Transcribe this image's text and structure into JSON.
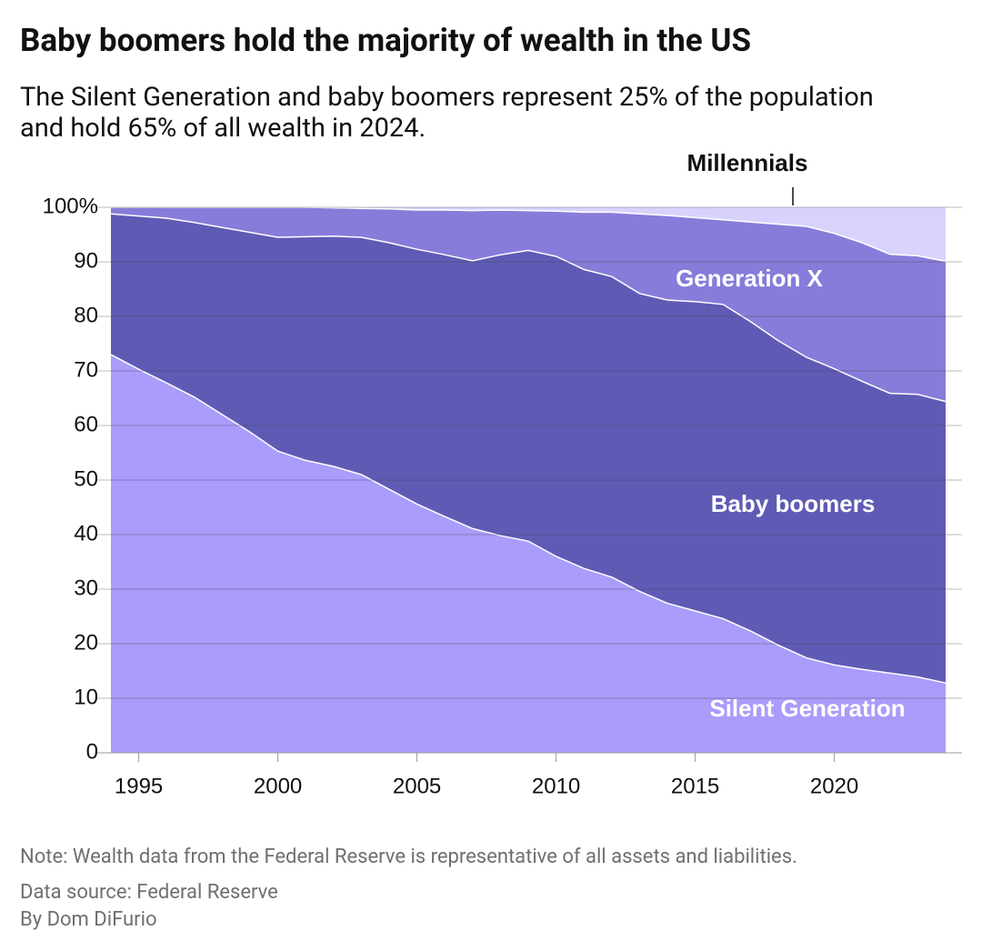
{
  "chart_data": {
    "type": "stacked-area",
    "title": "Baby boomers hold the majority of wealth in the US",
    "subtitle": "The Silent Generation and baby boomers represent 25% of the population and hold 65% of all wealth in 2024.",
    "note": "Note: Wealth data from the Federal Reserve is representative of all assets and liabilities.",
    "source": "Data source: Federal Reserve",
    "byline": "By Dom DiFurio",
    "x": [
      1994,
      1995,
      1996,
      1997,
      1998,
      1999,
      2000,
      2001,
      2002,
      2003,
      2004,
      2005,
      2006,
      2007,
      2008,
      2009,
      2010,
      2011,
      2012,
      2013,
      2014,
      2015,
      2016,
      2017,
      2018,
      2019,
      2020,
      2021,
      2022,
      2023,
      2024
    ],
    "xlim": [
      1994,
      2024
    ],
    "xticks": [
      1995,
      2000,
      2005,
      2010,
      2015,
      2020
    ],
    "ylim": [
      0,
      100
    ],
    "yticks": [
      0,
      10,
      20,
      30,
      40,
      50,
      60,
      70,
      80,
      90,
      {
        "value": 100,
        "label": "100%"
      }
    ],
    "grid": true,
    "series": [
      {
        "name": "Silent Generation",
        "color": "#a99cfb",
        "values": [
          73,
          70.3,
          67.8,
          65.2,
          62,
          58.8,
          55.3,
          53.6,
          52.5,
          51,
          48.3,
          45.6,
          43.3,
          41.1,
          39.8,
          38.8,
          36,
          33.8,
          32.2,
          29.6,
          27.4,
          26,
          24.6,
          22.3,
          19.7,
          17.4,
          16.1,
          15.3,
          14.6,
          13.9,
          12.8
        ]
      },
      {
        "name": "Baby boomers",
        "color": "#5f5bb5",
        "values": [
          25.8,
          28.1,
          30.2,
          32,
          34.3,
          36.6,
          39.2,
          41,
          42.2,
          43.5,
          45.2,
          46.7,
          48,
          49.1,
          51.5,
          53.3,
          55,
          54.8,
          55.1,
          54.6,
          55.6,
          56.7,
          57.6,
          56.7,
          55.8,
          55.1,
          54.3,
          52.8,
          51.3,
          51.8,
          51.6
        ]
      },
      {
        "name": "Generation X",
        "color": "#877cda",
        "values": [
          1.2,
          1.6,
          2,
          2.8,
          3.7,
          4.6,
          5.5,
          5.4,
          5.2,
          5.3,
          6.2,
          7.2,
          8.2,
          9.2,
          8.2,
          7.3,
          8.3,
          10.5,
          11.8,
          14.6,
          15.5,
          15.4,
          15.5,
          18.3,
          21.4,
          24,
          24.8,
          25.4,
          25.5,
          25.4,
          25.7
        ]
      },
      {
        "name": "Millennials",
        "color": "#d8d3fd",
        "values": [
          0,
          0,
          0,
          0,
          0,
          0,
          0,
          0,
          0.1,
          0.2,
          0.3,
          0.5,
          0.5,
          0.6,
          0.5,
          0.6,
          0.7,
          0.9,
          0.9,
          1.2,
          1.5,
          1.9,
          2.3,
          2.7,
          3.1,
          3.5,
          4.8,
          6.5,
          8.6,
          8.9,
          9.9
        ]
      }
    ]
  }
}
